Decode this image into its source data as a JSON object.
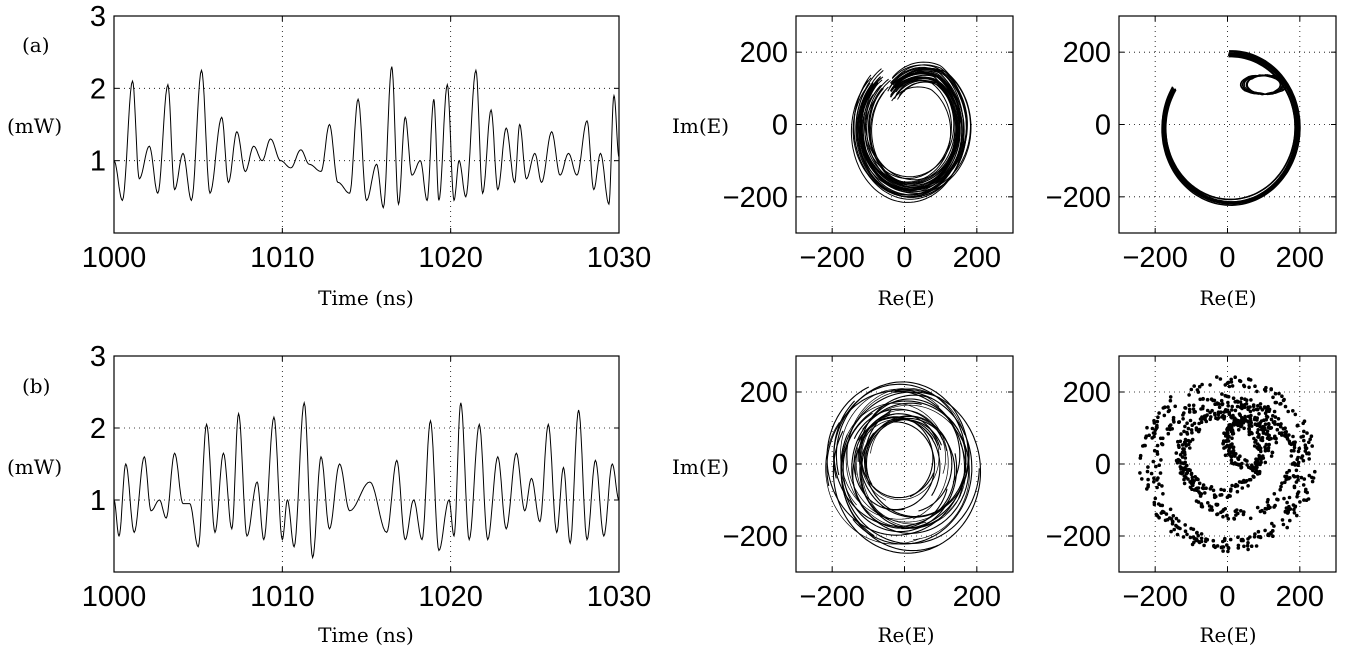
{
  "chart_data": [
    {
      "type": "line",
      "panel_label": "(a)",
      "ylabel": "(mW)",
      "xlabel": "Time (ns)",
      "xlim": [
        1000,
        1030
      ],
      "ylim": [
        0,
        3
      ],
      "xticks": [
        1000,
        1010,
        1020,
        1030
      ],
      "yticks": [
        1,
        2,
        3
      ],
      "grid": true,
      "peaks": [
        [
          1000.0,
          1.0
        ],
        [
          1000.5,
          0.45
        ],
        [
          1001.1,
          2.1
        ],
        [
          1001.5,
          0.75
        ],
        [
          1002.1,
          1.2
        ],
        [
          1002.6,
          0.55
        ],
        [
          1003.2,
          2.05
        ],
        [
          1003.6,
          0.6
        ],
        [
          1004.1,
          1.1
        ],
        [
          1004.6,
          0.45
        ],
        [
          1005.2,
          2.25
        ],
        [
          1005.7,
          0.55
        ],
        [
          1006.4,
          1.6
        ],
        [
          1006.8,
          0.7
        ],
        [
          1007.3,
          1.4
        ],
        [
          1007.8,
          0.85
        ],
        [
          1008.3,
          1.2
        ],
        [
          1008.8,
          1.0
        ],
        [
          1009.3,
          1.3
        ],
        [
          1009.9,
          1.0
        ],
        [
          1010.5,
          0.9
        ],
        [
          1011.1,
          1.15
        ],
        [
          1011.6,
          0.95
        ],
        [
          1012.3,
          0.85
        ],
        [
          1012.8,
          1.5
        ],
        [
          1013.3,
          0.7
        ],
        [
          1014.0,
          0.55
        ],
        [
          1014.5,
          1.85
        ],
        [
          1015.0,
          0.45
        ],
        [
          1015.6,
          0.95
        ],
        [
          1016.0,
          0.35
        ],
        [
          1016.5,
          2.3
        ],
        [
          1016.9,
          0.4
        ],
        [
          1017.3,
          1.6
        ],
        [
          1017.7,
          0.8
        ],
        [
          1018.2,
          1.0
        ],
        [
          1018.6,
          0.45
        ],
        [
          1019.0,
          1.85
        ],
        [
          1019.3,
          0.45
        ],
        [
          1019.8,
          2.05
        ],
        [
          1020.2,
          0.45
        ],
        [
          1020.5,
          1.0
        ],
        [
          1020.9,
          0.5
        ],
        [
          1021.5,
          2.25
        ],
        [
          1021.9,
          0.55
        ],
        [
          1022.4,
          1.7
        ],
        [
          1022.8,
          0.6
        ],
        [
          1023.3,
          1.45
        ],
        [
          1023.8,
          0.7
        ],
        [
          1024.1,
          1.5
        ],
        [
          1024.5,
          0.75
        ],
        [
          1025.0,
          1.1
        ],
        [
          1025.4,
          0.7
        ],
        [
          1026.0,
          1.4
        ],
        [
          1026.5,
          0.8
        ],
        [
          1027.0,
          1.1
        ],
        [
          1027.5,
          0.8
        ],
        [
          1028.1,
          1.55
        ],
        [
          1028.5,
          0.6
        ],
        [
          1028.9,
          1.1
        ],
        [
          1029.4,
          0.4
        ],
        [
          1029.7,
          1.9
        ],
        [
          1030.0,
          1.05
        ]
      ]
    },
    {
      "type": "scatter",
      "style": "trajectory",
      "ylabel": "Im(E)",
      "xlabel": "Re(E)",
      "xlim": [
        -300,
        300
      ],
      "ylim": [
        -300,
        300
      ],
      "xticks": [
        -200,
        0,
        200
      ],
      "yticks": [
        -200,
        0,
        200
      ],
      "grid": true
    },
    {
      "type": "scatter",
      "style": "trajectory",
      "xlabel": "Re(E)",
      "xlim": [
        -300,
        300
      ],
      "ylim": [
        -300,
        300
      ],
      "xticks": [
        -200,
        0,
        200
      ],
      "yticks": [
        -200,
        0,
        200
      ],
      "grid": true
    },
    {
      "type": "line",
      "panel_label": "(b)",
      "ylabel": "(mW)",
      "xlabel": "Time (ns)",
      "xlim": [
        1000,
        1030
      ],
      "ylim": [
        0,
        3
      ],
      "xticks": [
        1000,
        1010,
        1020,
        1030
      ],
      "yticks": [
        1,
        2,
        3
      ],
      "grid": true,
      "peaks": [
        [
          1000.0,
          1.0
        ],
        [
          1000.3,
          0.5
        ],
        [
          1000.7,
          1.5
        ],
        [
          1001.2,
          0.55
        ],
        [
          1001.8,
          1.6
        ],
        [
          1002.2,
          0.85
        ],
        [
          1002.7,
          1.0
        ],
        [
          1003.1,
          0.75
        ],
        [
          1003.6,
          1.65
        ],
        [
          1004.1,
          0.95
        ],
        [
          1004.5,
          0.95
        ],
        [
          1005.0,
          0.35
        ],
        [
          1005.5,
          2.05
        ],
        [
          1006.0,
          0.55
        ],
        [
          1006.5,
          1.65
        ],
        [
          1007.0,
          0.6
        ],
        [
          1007.4,
          2.2
        ],
        [
          1007.9,
          0.5
        ],
        [
          1008.5,
          1.25
        ],
        [
          1008.9,
          0.45
        ],
        [
          1009.5,
          2.15
        ],
        [
          1010.0,
          0.45
        ],
        [
          1010.3,
          1.0
        ],
        [
          1010.7,
          0.35
        ],
        [
          1011.3,
          2.35
        ],
        [
          1011.8,
          0.2
        ],
        [
          1012.3,
          1.6
        ],
        [
          1012.8,
          0.6
        ],
        [
          1013.4,
          1.5
        ],
        [
          1014.0,
          0.85
        ],
        [
          1015.2,
          1.25
        ],
        [
          1016.2,
          0.55
        ],
        [
          1016.8,
          1.55
        ],
        [
          1017.3,
          0.45
        ],
        [
          1017.8,
          1.0
        ],
        [
          1018.3,
          0.45
        ],
        [
          1018.8,
          2.1
        ],
        [
          1019.3,
          0.3
        ],
        [
          1019.9,
          1.0
        ],
        [
          1020.2,
          0.5
        ],
        [
          1020.6,
          2.35
        ],
        [
          1021.1,
          0.45
        ],
        [
          1021.7,
          2.05
        ],
        [
          1022.2,
          0.45
        ],
        [
          1022.8,
          1.6
        ],
        [
          1023.3,
          0.6
        ],
        [
          1023.9,
          1.65
        ],
        [
          1024.4,
          0.85
        ],
        [
          1024.8,
          1.3
        ],
        [
          1025.3,
          0.7
        ],
        [
          1025.8,
          2.05
        ],
        [
          1026.3,
          0.55
        ],
        [
          1026.7,
          1.45
        ],
        [
          1027.1,
          0.4
        ],
        [
          1027.6,
          2.25
        ],
        [
          1028.1,
          0.45
        ],
        [
          1028.6,
          1.55
        ],
        [
          1029.1,
          0.5
        ],
        [
          1029.6,
          1.5
        ],
        [
          1030.0,
          1.0
        ]
      ]
    },
    {
      "type": "scatter",
      "style": "trajectory",
      "ylabel": "Im(E)",
      "xlabel": "Re(E)",
      "xlim": [
        -300,
        300
      ],
      "ylim": [
        -300,
        300
      ],
      "xticks": [
        -200,
        0,
        200
      ],
      "yticks": [
        -200,
        0,
        200
      ],
      "grid": true
    },
    {
      "type": "scatter",
      "style": "dots",
      "xlabel": "Re(E)",
      "xlim": [
        -300,
        300
      ],
      "ylim": [
        -300,
        300
      ],
      "xticks": [
        -200,
        0,
        200
      ],
      "yticks": [
        -200,
        0,
        200
      ],
      "grid": true
    }
  ]
}
